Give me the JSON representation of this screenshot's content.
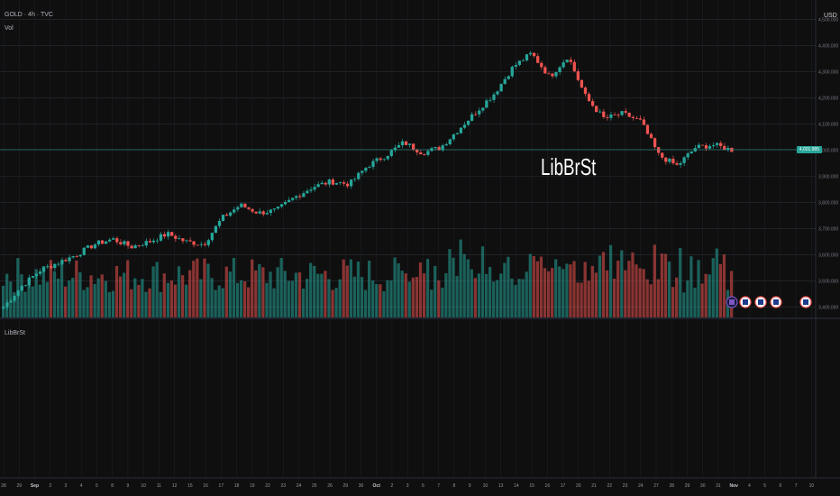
{
  "header": {
    "symbol_line": "GOLD · 4h · TVC",
    "volume_label": "Vol",
    "indicator_pane_label": "LibBrSt"
  },
  "watermark": "LibBrSt",
  "currency": "USD",
  "last_price_tag": "4,001.985",
  "colors": {
    "up": "#26a69a",
    "down": "#ef5350",
    "background": "#0f0f0f",
    "grid": "#2a2e39",
    "last_price_line": "#26a69a"
  },
  "chart_data": {
    "type": "candlestick",
    "price_axis_ticks": [
      "4,500.000",
      "4,400.000",
      "4,300.000",
      "4,200.000",
      "4,100.000",
      "4,000.000",
      "3,900.000",
      "3,800.000",
      "3,700.000",
      "3,600.000",
      "3,500.000",
      "3,400.000"
    ],
    "price_range": [
      3360,
      4540
    ],
    "date_ticks": [
      {
        "label": "28",
        "major": false
      },
      {
        "label": "29",
        "major": false
      },
      {
        "label": "Sep",
        "major": true
      },
      {
        "label": "2",
        "major": false
      },
      {
        "label": "3",
        "major": false
      },
      {
        "label": "4",
        "major": false
      },
      {
        "label": "5",
        "major": false
      },
      {
        "label": "8",
        "major": false
      },
      {
        "label": "9",
        "major": false
      },
      {
        "label": "10",
        "major": false
      },
      {
        "label": "11",
        "major": false
      },
      {
        "label": "12",
        "major": false
      },
      {
        "label": "15",
        "major": false
      },
      {
        "label": "16",
        "major": false
      },
      {
        "label": "17",
        "major": false
      },
      {
        "label": "18",
        "major": false
      },
      {
        "label": "19",
        "major": false
      },
      {
        "label": "22",
        "major": false
      },
      {
        "label": "23",
        "major": false
      },
      {
        "label": "24",
        "major": false
      },
      {
        "label": "25",
        "major": false
      },
      {
        "label": "26",
        "major": false
      },
      {
        "label": "29",
        "major": false
      },
      {
        "label": "30",
        "major": false
      },
      {
        "label": "Oct",
        "major": true
      },
      {
        "label": "2",
        "major": false
      },
      {
        "label": "3",
        "major": false
      },
      {
        "label": "6",
        "major": false
      },
      {
        "label": "7",
        "major": false
      },
      {
        "label": "8",
        "major": false
      },
      {
        "label": "9",
        "major": false
      },
      {
        "label": "10",
        "major": false
      },
      {
        "label": "13",
        "major": false
      },
      {
        "label": "14",
        "major": false
      },
      {
        "label": "15",
        "major": false
      },
      {
        "label": "16",
        "major": false
      },
      {
        "label": "17",
        "major": false
      },
      {
        "label": "20",
        "major": false
      },
      {
        "label": "21",
        "major": false
      },
      {
        "label": "22",
        "major": false
      },
      {
        "label": "23",
        "major": false
      },
      {
        "label": "24",
        "major": false
      },
      {
        "label": "27",
        "major": false
      },
      {
        "label": "28",
        "major": false
      },
      {
        "label": "29",
        "major": false
      },
      {
        "label": "30",
        "major": false
      },
      {
        "label": "31",
        "major": false
      },
      {
        "label": "Nov",
        "major": true
      },
      {
        "label": "4",
        "major": false
      },
      {
        "label": "5",
        "major": false
      },
      {
        "label": "6",
        "major": false
      },
      {
        "label": "7",
        "major": false
      },
      {
        "label": "10",
        "major": false
      }
    ],
    "price_path": [
      [
        "Aug 28",
        3400
      ],
      [
        "Sep 2",
        3480
      ],
      [
        "Sep 4",
        3540
      ],
      [
        "Sep 5",
        3570
      ],
      [
        "Sep 8",
        3600
      ],
      [
        "Sep 9",
        3640
      ],
      [
        "Sep 10",
        3660
      ],
      [
        "Sep 12",
        3630
      ],
      [
        "Sep 15",
        3650
      ],
      [
        "Sep 17",
        3680
      ],
      [
        "Sep 18",
        3650
      ],
      [
        "Sep 19",
        3640
      ],
      [
        "Sep 22",
        3740
      ],
      [
        "Sep 23",
        3790
      ],
      [
        "Sep 24",
        3760
      ],
      [
        "Sep 26",
        3770
      ],
      [
        "Sep 29",
        3820
      ],
      [
        "Sep 30",
        3860
      ],
      [
        "Oct 2",
        3880
      ],
      [
        "Oct 3",
        3870
      ],
      [
        "Oct 6",
        3940
      ],
      [
        "Oct 7",
        3980
      ],
      [
        "Oct 8",
        4030
      ],
      [
        "Oct 9",
        3990
      ],
      [
        "Oct 10",
        4010
      ],
      [
        "Oct 13",
        4080
      ],
      [
        "Oct 14",
        4150
      ],
      [
        "Oct 15",
        4220
      ],
      [
        "Oct 16",
        4320
      ],
      [
        "Oct 17",
        4370
      ],
      [
        "Oct 17b",
        4280
      ],
      [
        "Oct 20",
        4360
      ],
      [
        "Oct 21",
        4200
      ],
      [
        "Oct 22",
        4120
      ],
      [
        "Oct 23",
        4140
      ],
      [
        "Oct 24",
        4110
      ],
      [
        "Oct 27",
        3980
      ],
      [
        "Oct 28",
        3940
      ],
      [
        "Oct 29",
        4010
      ],
      [
        "Oct 30",
        4020
      ],
      [
        "Oct 31",
        4001
      ]
    ],
    "volume_range": [
      0,
      100
    ],
    "last_price": 4001.985,
    "event_markers": [
      "Oct 31",
      "Nov 4",
      "Nov 5",
      "Nov 6",
      "Nov 10"
    ]
  }
}
